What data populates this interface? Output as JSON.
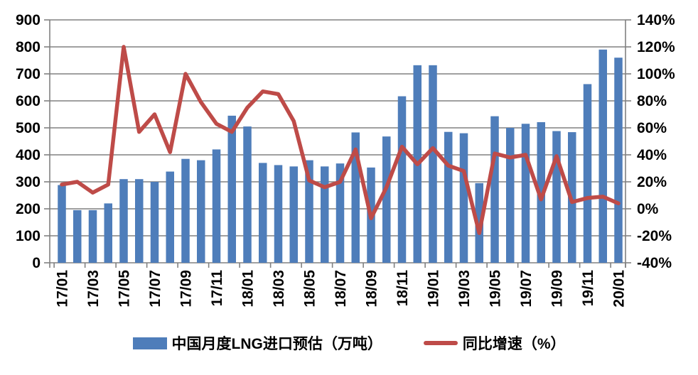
{
  "legend": {
    "bar_label": "中国月度LNG进口预估（万吨）",
    "line_label": "同比增速（%）"
  },
  "chart_data": {
    "type": "combo",
    "title": "",
    "categories": [
      "17/01",
      "17/02",
      "17/03",
      "17/04",
      "17/05",
      "17/06",
      "17/07",
      "17/08",
      "17/09",
      "17/10",
      "17/11",
      "17/12",
      "18/01",
      "18/02",
      "18/03",
      "18/04",
      "18/05",
      "18/06",
      "18/07",
      "18/08",
      "18/09",
      "18/10",
      "18/11",
      "18/12",
      "19/01",
      "19/02",
      "19/03",
      "19/04",
      "19/05",
      "19/06",
      "19/07",
      "19/08",
      "19/09",
      "19/10",
      "19/11",
      "19/12",
      "20/01"
    ],
    "x_tick_labels": [
      "17/01",
      "17/03",
      "17/05",
      "17/07",
      "17/09",
      "17/11",
      "18/01",
      "18/03",
      "18/05",
      "18/07",
      "18/09",
      "18/11",
      "19/01",
      "19/03",
      "19/05",
      "19/07",
      "19/09",
      "19/11",
      "20/01"
    ],
    "series": [
      {
        "name": "中国月度LNG进口预估（万吨）",
        "type": "bar",
        "axis": "left",
        "color": "#4E7DBA",
        "values": [
          288,
          195,
          195,
          220,
          310,
          310,
          300,
          338,
          385,
          380,
          420,
          545,
          505,
          370,
          362,
          357,
          380,
          357,
          368,
          483,
          353,
          468,
          617,
          732,
          732,
          485,
          480,
          295,
          543,
          500,
          515,
          521,
          488,
          484,
          662,
          790,
          760
        ]
      },
      {
        "name": "同比增速（%）",
        "type": "line",
        "axis": "right",
        "color": "#BE4B48",
        "values": [
          18,
          20,
          12,
          18,
          120,
          57,
          70,
          42,
          100,
          79,
          63,
          57,
          75,
          87,
          85,
          65,
          21,
          16,
          20,
          44,
          -7,
          16,
          46,
          33,
          45,
          32,
          28,
          -18,
          41,
          38,
          40,
          7,
          39,
          5,
          8,
          9,
          4
        ]
      }
    ],
    "left_axis": {
      "min": 0,
      "max": 900,
      "step": 100,
      "tick_labels": [
        "0",
        "100",
        "200",
        "300",
        "400",
        "500",
        "600",
        "700",
        "800",
        "900"
      ]
    },
    "right_axis": {
      "min": -40,
      "max": 140,
      "step": 20,
      "tick_labels": [
        "-40%",
        "-20%",
        "0%",
        "20%",
        "40%",
        "60%",
        "80%",
        "100%",
        "120%",
        "140%"
      ]
    },
    "grid": true,
    "legend_position": "bottom",
    "gridline_color": "#808080",
    "axis_color": "#808080",
    "background_color": "#FFFFFF",
    "text_color": "#000000"
  }
}
